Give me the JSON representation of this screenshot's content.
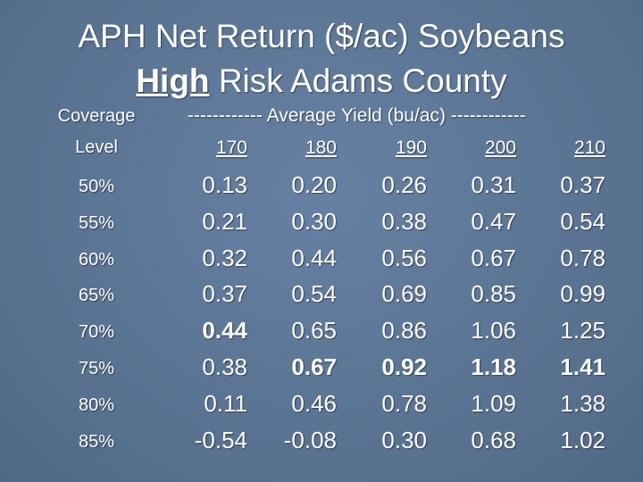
{
  "title": {
    "line1": "APH Net Return ($/ac) Soybeans",
    "line2_emphasis": "High",
    "line2_rest": "Risk Adams County"
  },
  "table": {
    "header": {
      "coverage_line1": "Coverage",
      "coverage_line2": "Level",
      "group": "------------ Average Yield (bu/ac) ------------",
      "columns": [
        "170",
        "180",
        "190",
        "200",
        "210"
      ]
    },
    "rows": [
      {
        "level": "50%",
        "cells": [
          "0.13",
          "0.20",
          "0.26",
          "0.31",
          "0.37"
        ]
      },
      {
        "level": "55%",
        "cells": [
          "0.21",
          "0.30",
          "0.38",
          "0.47",
          "0.54"
        ]
      },
      {
        "level": "60%",
        "cells": [
          "0.32",
          "0.44",
          "0.56",
          "0.67",
          "0.78"
        ]
      },
      {
        "level": "65%",
        "cells": [
          "0.37",
          "0.54",
          "0.69",
          "0.85",
          "0.99"
        ]
      },
      {
        "level": "70%",
        "cells": [
          "0.44",
          "0.65",
          "0.86",
          "1.06",
          "1.25"
        ]
      },
      {
        "level": "75%",
        "cells": [
          "0.38",
          "0.67",
          "0.92",
          "1.18",
          "1.41"
        ]
      },
      {
        "level": "80%",
        "cells": [
          "0.11",
          "0.46",
          "0.78",
          "1.09",
          "1.38"
        ]
      },
      {
        "level": "85%",
        "cells": [
          "-0.54",
          "-0.08",
          "0.30",
          "0.68",
          "1.02"
        ]
      }
    ],
    "bold_cells": [
      [
        4,
        0
      ],
      [
        5,
        1
      ],
      [
        5,
        2
      ],
      [
        5,
        3
      ],
      [
        5,
        4
      ]
    ]
  }
}
